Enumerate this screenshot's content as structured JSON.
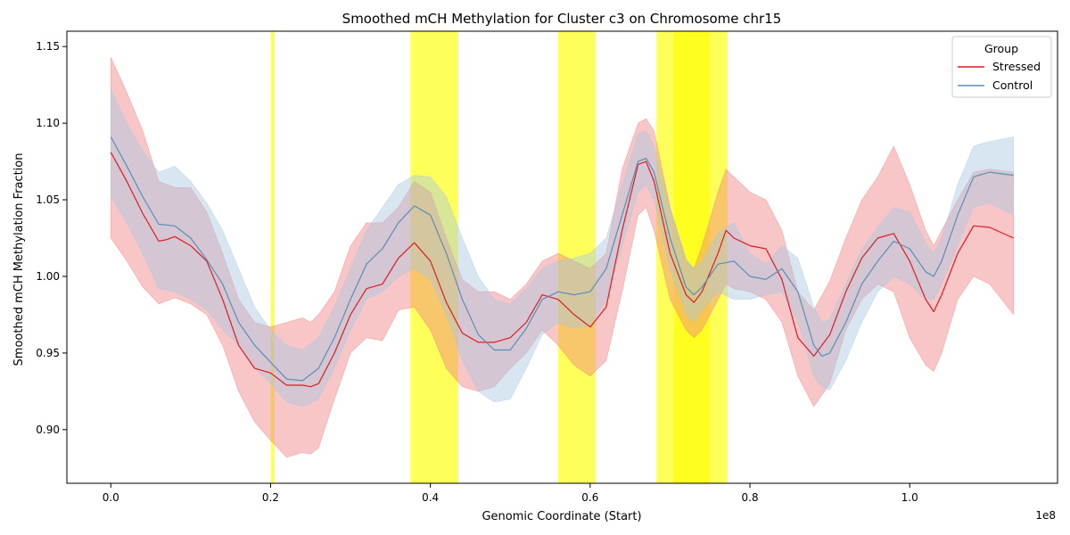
{
  "chart_data": {
    "type": "line",
    "title": "Smoothed mCH Methylation for Cluster c3 on Chromosome chr15",
    "xlabel": "Genomic Coordinate (Start)",
    "ylabel": "Smoothed mCH Methylation Fraction",
    "x_offset_label": "1e8",
    "xlim": [
      -0.055,
      1.185
    ],
    "ylim": [
      0.865,
      1.16
    ],
    "x_ticks": [
      0.0,
      0.2,
      0.4,
      0.6,
      0.8,
      1.0
    ],
    "x_tick_labels": [
      "0.0",
      "0.2",
      "0.4",
      "0.6",
      "0.8",
      "1.0"
    ],
    "y_ticks": [
      0.9,
      0.95,
      1.0,
      1.05,
      1.1,
      1.15
    ],
    "y_tick_labels": [
      "0.90",
      "0.95",
      "1.00",
      "1.05",
      "1.10",
      "1.15"
    ],
    "grid": false,
    "legend": {
      "title": "Group",
      "placement": "top-right"
    },
    "highlight_regions": [
      {
        "x": [
          0.2,
          0.205
        ],
        "color": "#ffff00"
      },
      {
        "x": [
          0.375,
          0.435
        ],
        "color": "#ffff00"
      },
      {
        "x": [
          0.56,
          0.607
        ],
        "color": "#ffff00"
      },
      {
        "x": [
          0.683,
          0.772
        ],
        "color": "#ffff00"
      },
      {
        "x": [
          0.705,
          0.75
        ],
        "color": "#ffff00"
      }
    ],
    "series": [
      {
        "name": "Stressed",
        "color": "#e41a1c",
        "band_color": "#f08080",
        "x": [
          0.0,
          0.02,
          0.04,
          0.06,
          0.07,
          0.08,
          0.1,
          0.12,
          0.14,
          0.16,
          0.18,
          0.2,
          0.22,
          0.24,
          0.25,
          0.26,
          0.28,
          0.3,
          0.32,
          0.34,
          0.36,
          0.38,
          0.4,
          0.42,
          0.44,
          0.46,
          0.48,
          0.5,
          0.52,
          0.54,
          0.56,
          0.58,
          0.6,
          0.62,
          0.64,
          0.66,
          0.67,
          0.68,
          0.7,
          0.72,
          0.73,
          0.74,
          0.76,
          0.77,
          0.78,
          0.8,
          0.82,
          0.84,
          0.86,
          0.88,
          0.9,
          0.92,
          0.94,
          0.96,
          0.98,
          1.0,
          1.02,
          1.03,
          1.04,
          1.06,
          1.08,
          1.1,
          1.13
        ],
        "y": [
          1.081,
          1.062,
          1.041,
          1.023,
          1.024,
          1.026,
          1.02,
          1.01,
          0.985,
          0.955,
          0.94,
          0.937,
          0.929,
          0.929,
          0.928,
          0.93,
          0.95,
          0.975,
          0.992,
          0.995,
          1.012,
          1.022,
          1.01,
          0.983,
          0.963,
          0.957,
          0.957,
          0.96,
          0.97,
          0.988,
          0.985,
          0.975,
          0.967,
          0.98,
          1.03,
          1.073,
          1.075,
          1.062,
          1.015,
          0.988,
          0.983,
          0.99,
          1.015,
          1.03,
          1.025,
          1.02,
          1.018,
          0.998,
          0.96,
          0.948,
          0.962,
          0.99,
          1.012,
          1.025,
          1.028,
          1.01,
          0.985,
          0.977,
          0.988,
          1.015,
          1.033,
          1.032,
          1.025
        ],
        "lower": [
          1.025,
          1.01,
          0.993,
          0.982,
          0.984,
          0.986,
          0.982,
          0.975,
          0.955,
          0.925,
          0.905,
          0.893,
          0.882,
          0.885,
          0.884,
          0.888,
          0.92,
          0.95,
          0.96,
          0.958,
          0.978,
          0.98,
          0.965,
          0.94,
          0.928,
          0.925,
          0.928,
          0.94,
          0.95,
          0.965,
          0.955,
          0.942,
          0.935,
          0.945,
          0.99,
          1.04,
          1.045,
          1.03,
          0.985,
          0.965,
          0.96,
          0.965,
          0.985,
          0.995,
          0.992,
          0.99,
          0.985,
          0.97,
          0.935,
          0.915,
          0.93,
          0.965,
          0.985,
          0.995,
          0.99,
          0.96,
          0.942,
          0.938,
          0.95,
          0.985,
          1.0,
          0.995,
          0.975
        ],
        "upper": [
          1.143,
          1.12,
          1.095,
          1.062,
          1.06,
          1.058,
          1.058,
          1.042,
          1.015,
          0.985,
          0.97,
          0.967,
          0.97,
          0.973,
          0.97,
          0.975,
          0.99,
          1.02,
          1.035,
          1.035,
          1.045,
          1.062,
          1.055,
          1.025,
          0.998,
          0.99,
          0.99,
          0.985,
          0.995,
          1.01,
          1.015,
          1.01,
          1.005,
          1.015,
          1.07,
          1.1,
          1.103,
          1.095,
          1.045,
          1.01,
          1.005,
          1.02,
          1.055,
          1.07,
          1.065,
          1.055,
          1.05,
          1.03,
          0.99,
          0.978,
          0.997,
          1.025,
          1.05,
          1.065,
          1.085,
          1.06,
          1.03,
          1.02,
          1.03,
          1.05,
          1.068,
          1.07,
          1.068
        ]
      },
      {
        "name": "Control",
        "color": "#5b8db8",
        "band_color": "#a9c7e3",
        "x": [
          0.0,
          0.02,
          0.04,
          0.06,
          0.08,
          0.1,
          0.12,
          0.14,
          0.16,
          0.18,
          0.2,
          0.22,
          0.24,
          0.26,
          0.28,
          0.3,
          0.32,
          0.34,
          0.36,
          0.38,
          0.4,
          0.42,
          0.44,
          0.46,
          0.48,
          0.5,
          0.52,
          0.54,
          0.56,
          0.58,
          0.6,
          0.62,
          0.64,
          0.66,
          0.67,
          0.68,
          0.7,
          0.72,
          0.73,
          0.74,
          0.76,
          0.78,
          0.8,
          0.82,
          0.84,
          0.86,
          0.88,
          0.89,
          0.9,
          0.92,
          0.94,
          0.96,
          0.98,
          1.0,
          1.02,
          1.03,
          1.04,
          1.06,
          1.08,
          1.1,
          1.13
        ],
        "y": [
          1.091,
          1.072,
          1.052,
          1.034,
          1.033,
          1.025,
          1.011,
          0.995,
          0.97,
          0.955,
          0.944,
          0.933,
          0.932,
          0.94,
          0.96,
          0.985,
          1.008,
          1.018,
          1.035,
          1.046,
          1.04,
          1.015,
          0.985,
          0.962,
          0.952,
          0.952,
          0.966,
          0.985,
          0.99,
          0.988,
          0.99,
          1.005,
          1.04,
          1.075,
          1.077,
          1.068,
          1.025,
          0.993,
          0.988,
          0.993,
          1.008,
          1.01,
          1.0,
          0.998,
          1.005,
          0.99,
          0.955,
          0.948,
          0.95,
          0.97,
          0.995,
          1.01,
          1.023,
          1.018,
          1.003,
          1.0,
          1.01,
          1.04,
          1.065,
          1.068,
          1.066
        ],
        "lower": [
          1.052,
          1.035,
          1.015,
          0.992,
          0.99,
          0.985,
          0.978,
          0.965,
          0.955,
          0.94,
          0.93,
          0.918,
          0.915,
          0.92,
          0.94,
          0.965,
          0.985,
          0.99,
          1.0,
          1.005,
          0.998,
          0.975,
          0.945,
          0.925,
          0.918,
          0.92,
          0.94,
          0.962,
          0.97,
          0.966,
          0.968,
          0.985,
          1.02,
          1.055,
          1.06,
          1.05,
          1.005,
          0.975,
          0.97,
          0.978,
          0.99,
          0.985,
          0.985,
          0.988,
          0.99,
          0.97,
          0.935,
          0.928,
          0.926,
          0.945,
          0.97,
          0.99,
          1.0,
          0.995,
          0.985,
          0.985,
          0.995,
          1.02,
          1.045,
          1.048,
          1.04
        ],
        "upper": [
          1.122,
          1.1,
          1.082,
          1.068,
          1.072,
          1.062,
          1.048,
          1.03,
          1.005,
          0.98,
          0.965,
          0.955,
          0.952,
          0.96,
          0.98,
          1.005,
          1.03,
          1.045,
          1.06,
          1.066,
          1.065,
          1.052,
          1.025,
          1.0,
          0.985,
          0.982,
          0.992,
          1.005,
          1.01,
          1.012,
          1.015,
          1.025,
          1.06,
          1.093,
          1.095,
          1.085,
          1.045,
          1.012,
          1.005,
          1.01,
          1.028,
          1.035,
          1.015,
          1.008,
          1.02,
          1.012,
          0.98,
          0.97,
          0.972,
          0.995,
          1.018,
          1.032,
          1.045,
          1.042,
          1.022,
          1.015,
          1.025,
          1.06,
          1.085,
          1.088,
          1.091
        ]
      }
    ]
  }
}
